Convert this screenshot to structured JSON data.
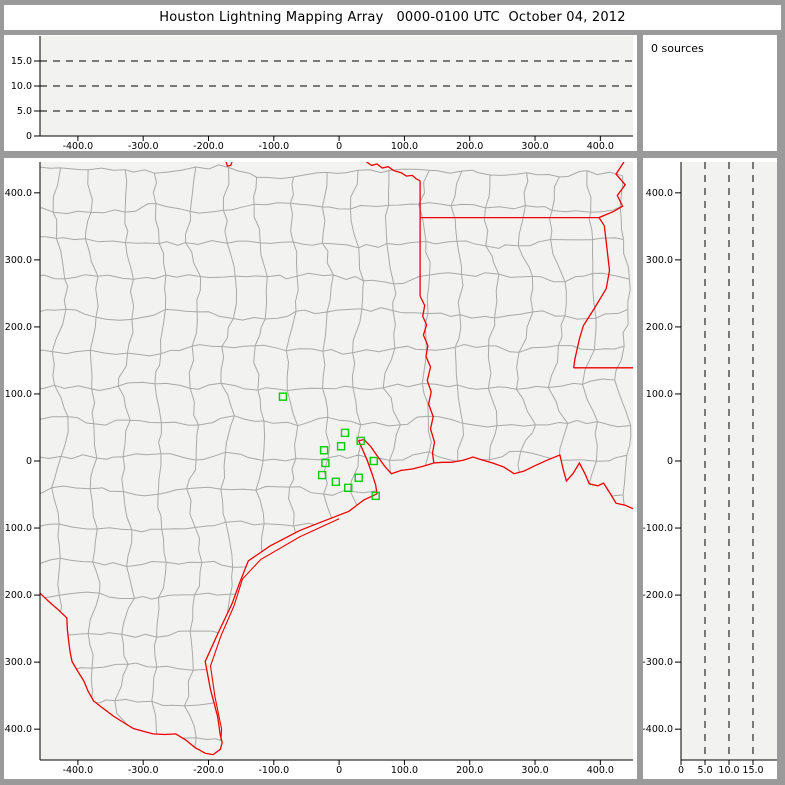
{
  "title": "Houston Lightning Mapping Array   0000-0100 UTC  October 04, 2012",
  "sources_label": "0 sources",
  "sources_count": 0,
  "colors": {
    "frame": "#9a9a9a",
    "panel_bg": "#ffffff",
    "plot_bg": "#f2f2f0",
    "axis": "#000000",
    "county_line": "#a9a9a9",
    "state_border": "#ee0000",
    "station": "#00cf00"
  },
  "chart_data": [
    {
      "id": "altitude-vs-ew-distance",
      "type": "scatter",
      "title": "",
      "points": [],
      "xlim": [
        -458,
        450
      ],
      "ylim": [
        0,
        20
      ],
      "x_ticks": {
        "values": [
          -400,
          -300,
          -200,
          -100,
          0,
          100,
          200,
          300,
          400
        ],
        "labels": [
          "-400.0",
          "-300.0",
          "-200.0",
          "-100.0",
          "0",
          "100.0",
          "200.0",
          "300.0",
          "400.0"
        ]
      },
      "y_ticks": {
        "values": [
          0,
          5,
          10,
          15
        ],
        "labels": [
          "0",
          "5.0",
          "10.0",
          "15.0"
        ]
      },
      "gridlines_y": [
        5,
        10,
        15
      ],
      "grid_style": "dashed",
      "legend": null
    },
    {
      "id": "plan-view-map",
      "type": "scatter",
      "title": "",
      "points": [],
      "xlim": [
        -458,
        450
      ],
      "ylim": [
        -446,
        446
      ],
      "x_ticks": {
        "values": [
          -400,
          -300,
          -200,
          -100,
          0,
          100,
          200,
          300,
          400
        ],
        "labels": [
          "-400.0",
          "-300.0",
          "-200.0",
          "-100.0",
          "0",
          "100.0",
          "200.0",
          "300.0",
          "400.0"
        ]
      },
      "y_ticks": {
        "values": [
          400,
          300,
          200,
          100,
          0,
          -100,
          -200,
          -300,
          -400
        ],
        "labels": [
          "400.0",
          "300.0",
          "200.0",
          "100.0",
          "0",
          "-100.0",
          "-200.0",
          "-300.0",
          "-400.0"
        ]
      },
      "stations_km": [
        [
          -86,
          96
        ],
        [
          9,
          42
        ],
        [
          33,
          30
        ],
        [
          3,
          22
        ],
        [
          -23,
          16
        ],
        [
          53,
          0
        ],
        [
          -21,
          -3
        ],
        [
          -26,
          -21
        ],
        [
          -5,
          -31
        ],
        [
          30,
          -25
        ],
        [
          14,
          -40
        ],
        [
          56,
          -52
        ]
      ],
      "grid_style": "none",
      "legend": null
    },
    {
      "id": "altitude-vs-ns-distance",
      "type": "scatter",
      "title": "",
      "points": [],
      "xlim": [
        0,
        20
      ],
      "ylim": [
        -446,
        446
      ],
      "x_ticks": {
        "values": [
          0,
          5,
          10,
          15
        ],
        "labels": [
          "0",
          "5.0",
          "10.0",
          "15.0"
        ]
      },
      "y_ticks": {
        "values": [
          400,
          300,
          200,
          100,
          0,
          -100,
          -200,
          -300,
          -400
        ],
        "labels": [
          "400.0",
          "300.0",
          "200.0",
          "100.0",
          "0",
          "-100.0",
          "-200.0",
          "-300.0",
          "-400.0"
        ]
      },
      "gridlines_x": [
        5,
        10,
        15
      ],
      "grid_style": "dashed",
      "legend": null
    }
  ],
  "map": {
    "counties": {
      "seed": 20121004,
      "cell_km": 51,
      "row_km": 53,
      "node_jitter_km": 8,
      "mid_jitter_km": 4,
      "row_offset_km": 10
    },
    "state_borders": {
      "red_river_notch": [
        [
          -173,
          446
        ],
        [
          -171,
          440
        ],
        [
          -166,
          441
        ],
        [
          -164,
          446
        ]
      ],
      "red_river": [
        [
          42,
          446
        ],
        [
          50,
          441
        ],
        [
          58,
          443
        ],
        [
          66,
          437
        ],
        [
          75,
          439
        ],
        [
          84,
          433
        ],
        [
          95,
          430
        ],
        [
          103,
          425
        ],
        [
          112,
          426
        ],
        [
          118,
          421
        ],
        [
          124,
          418
        ]
      ],
      "texas_arkansas": [
        [
          124,
          418
        ],
        [
          124,
          246
        ]
      ],
      "arkansas_louisiana": [
        [
          124,
          363
        ],
        [
          398,
          363
        ]
      ],
      "sabine_river": [
        [
          124,
          246
        ],
        [
          131,
          232
        ],
        [
          128,
          216
        ],
        [
          134,
          203
        ],
        [
          129,
          188
        ],
        [
          136,
          172
        ],
        [
          133,
          156
        ],
        [
          140,
          140
        ],
        [
          135,
          120
        ],
        [
          141,
          103
        ],
        [
          137,
          85
        ],
        [
          144,
          66
        ],
        [
          140,
          48
        ],
        [
          146,
          28
        ],
        [
          143,
          12
        ],
        [
          145,
          -3
        ]
      ],
      "mississippi_river": [
        [
          436,
          446
        ],
        [
          424,
          428
        ],
        [
          438,
          412
        ],
        [
          426,
          396
        ],
        [
          434,
          380
        ],
        [
          420,
          372
        ],
        [
          398,
          363
        ],
        [
          406,
          351
        ],
        [
          410,
          318
        ],
        [
          414,
          284
        ],
        [
          409,
          257
        ],
        [
          391,
          228
        ],
        [
          374,
          202
        ],
        [
          368,
          182
        ],
        [
          361,
          152
        ],
        [
          359,
          139
        ]
      ],
      "louisiana_mississippi": [
        [
          359,
          139
        ],
        [
          452,
          139
        ]
      ]
    },
    "coastline_rio_grande": [
      [
        452,
        -72
      ],
      [
        438,
        -66
      ],
      [
        424,
        -63
      ],
      [
        416,
        -50
      ],
      [
        405,
        -33
      ],
      [
        396,
        -37
      ],
      [
        383,
        -34
      ],
      [
        377,
        -20
      ],
      [
        368,
        -3
      ],
      [
        358,
        -19
      ],
      [
        348,
        -30
      ],
      [
        343,
        -12
      ],
      [
        338,
        9
      ],
      [
        318,
        1
      ],
      [
        300,
        -7
      ],
      [
        283,
        -15
      ],
      [
        268,
        -19
      ],
      [
        252,
        -9
      ],
      [
        235,
        -3
      ],
      [
        218,
        2
      ],
      [
        205,
        6
      ],
      [
        190,
        1
      ],
      [
        172,
        -2
      ],
      [
        158,
        -2
      ],
      [
        145,
        -3
      ],
      [
        128,
        -8
      ],
      [
        112,
        -12
      ],
      [
        95,
        -14
      ],
      [
        80,
        -19
      ],
      [
        70,
        -8
      ],
      [
        58,
        8
      ],
      [
        48,
        22
      ],
      [
        38,
        32
      ],
      [
        30,
        30
      ],
      [
        36,
        17
      ],
      [
        43,
        1
      ],
      [
        50,
        -18
      ],
      [
        56,
        -36
      ],
      [
        58,
        -49
      ],
      [
        38,
        -58
      ],
      [
        15,
        -75
      ],
      [
        -22,
        -89
      ],
      [
        -61,
        -104
      ],
      [
        -106,
        -127
      ],
      [
        -139,
        -149
      ],
      [
        -152,
        -181
      ],
      [
        -164,
        -213
      ],
      [
        -185,
        -256
      ],
      [
        -205,
        -299
      ],
      [
        -197,
        -341
      ],
      [
        -186,
        -381
      ],
      [
        -182,
        -409
      ],
      [
        -179,
        -420
      ],
      [
        -182,
        -430
      ],
      [
        -193,
        -438
      ],
      [
        -205,
        -436
      ],
      [
        -214,
        -431
      ],
      [
        -220,
        -428
      ],
      [
        -235,
        -416
      ],
      [
        -250,
        -407
      ],
      [
        -267,
        -408
      ],
      [
        -285,
        -407
      ],
      [
        -300,
        -403
      ],
      [
        -315,
        -399
      ],
      [
        -330,
        -390
      ],
      [
        -345,
        -381
      ],
      [
        -360,
        -370
      ],
      [
        -376,
        -358
      ],
      [
        -384,
        -344
      ],
      [
        -391,
        -328
      ],
      [
        -400,
        -314
      ],
      [
        -409,
        -299
      ],
      [
        -412,
        -284
      ],
      [
        -414,
        -269
      ],
      [
        -416,
        -252
      ],
      [
        -417,
        -234
      ],
      [
        -430,
        -222
      ],
      [
        -444,
        -210
      ],
      [
        -458,
        -197
      ]
    ],
    "barrier_island": [
      [
        0,
        -86
      ],
      [
        -60,
        -113
      ],
      [
        -120,
        -147
      ],
      [
        -148,
        -176
      ],
      [
        -161,
        -216
      ],
      [
        -181,
        -261
      ],
      [
        -197,
        -306
      ],
      [
        -190,
        -352
      ],
      [
        -180,
        -400
      ],
      [
        -181,
        -416
      ]
    ]
  }
}
